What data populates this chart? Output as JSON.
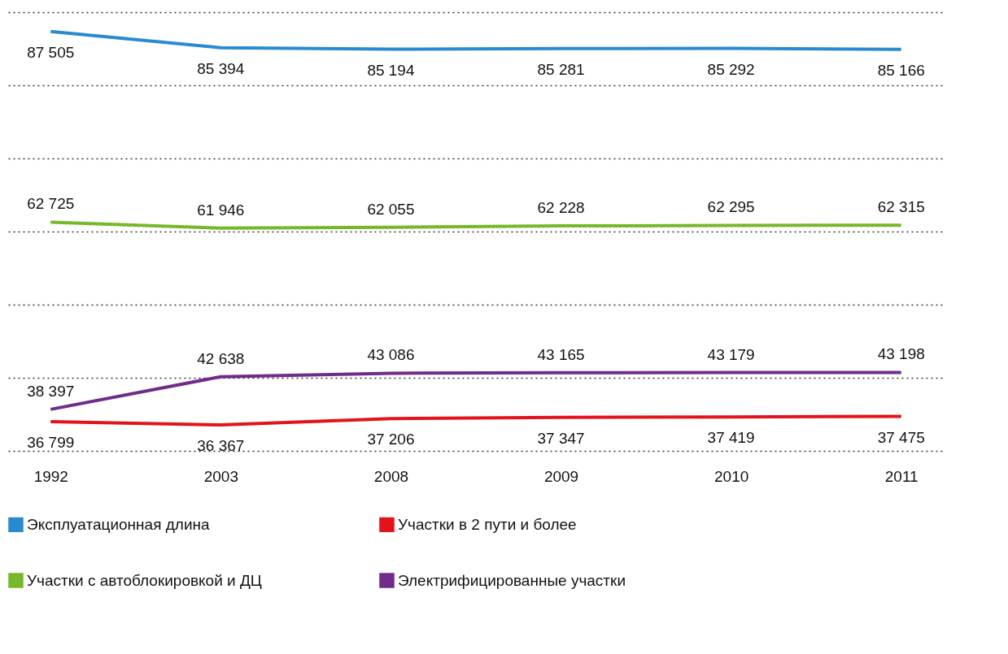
{
  "chart_data": {
    "type": "line",
    "categories": [
      "1992",
      "2003",
      "2008",
      "2009",
      "2010",
      "2011"
    ],
    "series": [
      {
        "name": "Эксплуатационная длина",
        "color": "#2a8ad0",
        "values": [
          87505,
          85394,
          85194,
          85281,
          85292,
          85166
        ]
      },
      {
        "name": "Участки в 2 пути и более",
        "color": "#e3131b",
        "values": [
          36799,
          36367,
          37206,
          37347,
          37419,
          37475
        ]
      },
      {
        "name": "Участки с автоблокировкой и ДЦ",
        "color": "#76b82a",
        "values": [
          62725,
          61946,
          62055,
          62228,
          62295,
          62315
        ]
      },
      {
        "name": "Электрифицированные участки",
        "color": "#6f2c8b",
        "values": [
          38397,
          42638,
          43086,
          43165,
          43179,
          43198
        ]
      }
    ],
    "ylim": [
      33000,
      90000
    ],
    "yticks": [
      {
        "value": 33000,
        "label": null
      },
      {
        "value": 42500,
        "label": null
      },
      {
        "value": 52000,
        "label": null
      },
      {
        "value": 61500,
        "label": null
      },
      {
        "value": 71000,
        "label": null
      },
      {
        "value": 80500,
        "label": null
      },
      {
        "value": 90000,
        "label": null
      }
    ],
    "tick_labels": "x",
    "grid": "y",
    "data_labels": true,
    "legend": "bottom",
    "marker": "none",
    "line_style": "solid"
  }
}
